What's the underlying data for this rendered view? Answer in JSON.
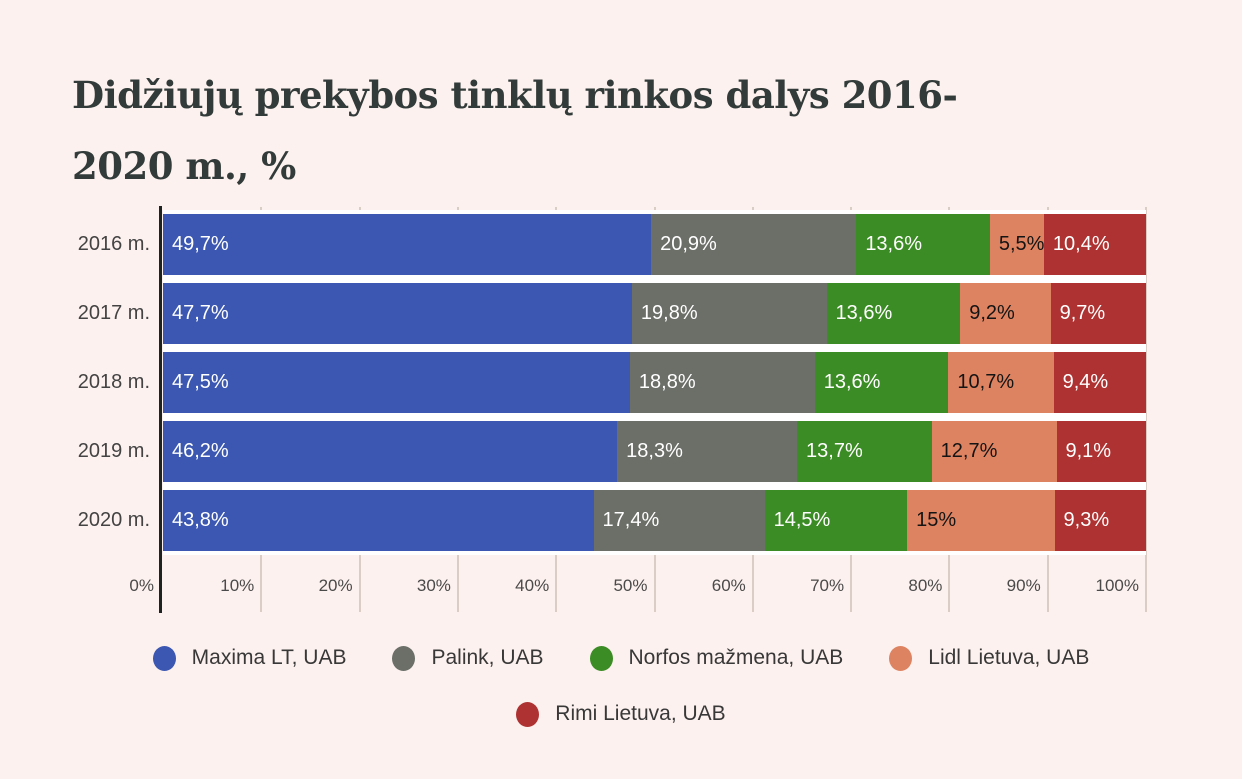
{
  "title": {
    "full": "Didžiujų prekybos tinklų rinkos dalys 2016-2020 m., %",
    "lines": [
      "Didžiujų prekybos tinklų rinkos dalys 2016-",
      "2020 m., %"
    ]
  },
  "chart_data": {
    "type": "bar",
    "stacked": true,
    "orientation": "horizontal",
    "title": "Didžiujų prekybos tinklų rinkos dalys 2016-2020 m., %",
    "categories": [
      "2016 m.",
      "2017 m.",
      "2018 m.",
      "2019 m.",
      "2020 m."
    ],
    "series": [
      {
        "name": "Maxima LT, UAB",
        "color": "#3b57b1",
        "label_color": "#ffffff",
        "values": [
          49.7,
          47.7,
          47.5,
          46.2,
          43.8
        ],
        "labels": [
          "49,7%",
          "47,7%",
          "47,5%",
          "46,2%",
          "43,8%"
        ]
      },
      {
        "name": "Palink, UAB",
        "color": "#6b6f68",
        "label_color": "#ffffff",
        "values": [
          20.9,
          19.8,
          18.8,
          18.3,
          17.4
        ],
        "labels": [
          "20,9%",
          "19,8%",
          "18,8%",
          "18,3%",
          "17,4%"
        ]
      },
      {
        "name": "Norfos mažmena, UAB",
        "color": "#3c8c25",
        "label_color": "#ffffff",
        "values": [
          13.6,
          13.6,
          13.6,
          13.7,
          14.5
        ],
        "labels": [
          "13,6%",
          "13,6%",
          "13,6%",
          "13,7%",
          "14,5%"
        ]
      },
      {
        "name": "Lidl Lietuva, UAB",
        "color": "#dd8361",
        "label_color": "#141414",
        "values": [
          5.5,
          9.2,
          10.7,
          12.7,
          15
        ],
        "labels": [
          "5,5%",
          "9,2%",
          "10,7%",
          "12,7%",
          "15%"
        ]
      },
      {
        "name": "Rimi Lietuva, UAB",
        "color": "#ae3231",
        "label_color": "#ffffff",
        "values": [
          10.4,
          9.7,
          9.4,
          9.1,
          9.3
        ],
        "labels": [
          "10,4%",
          "9,7%",
          "9,4%",
          "9,1%",
          "9,3%"
        ]
      }
    ],
    "x_ticks": [
      "0%",
      "10%",
      "20%",
      "30%",
      "40%",
      "50%",
      "60%",
      "70%",
      "80%",
      "90%",
      "100%"
    ],
    "xlim": [
      0,
      100
    ],
    "grid": "vertical",
    "legend_position": "bottom",
    "legend_rows": [
      [
        0,
        1,
        2,
        3
      ],
      [
        4
      ]
    ]
  },
  "colors": {
    "background": "#fcf1ee",
    "axis_line": "#1d2321",
    "gridline": "#d9cdc6",
    "title_text": "#323b39",
    "tick_text": "#4a4a4a"
  }
}
